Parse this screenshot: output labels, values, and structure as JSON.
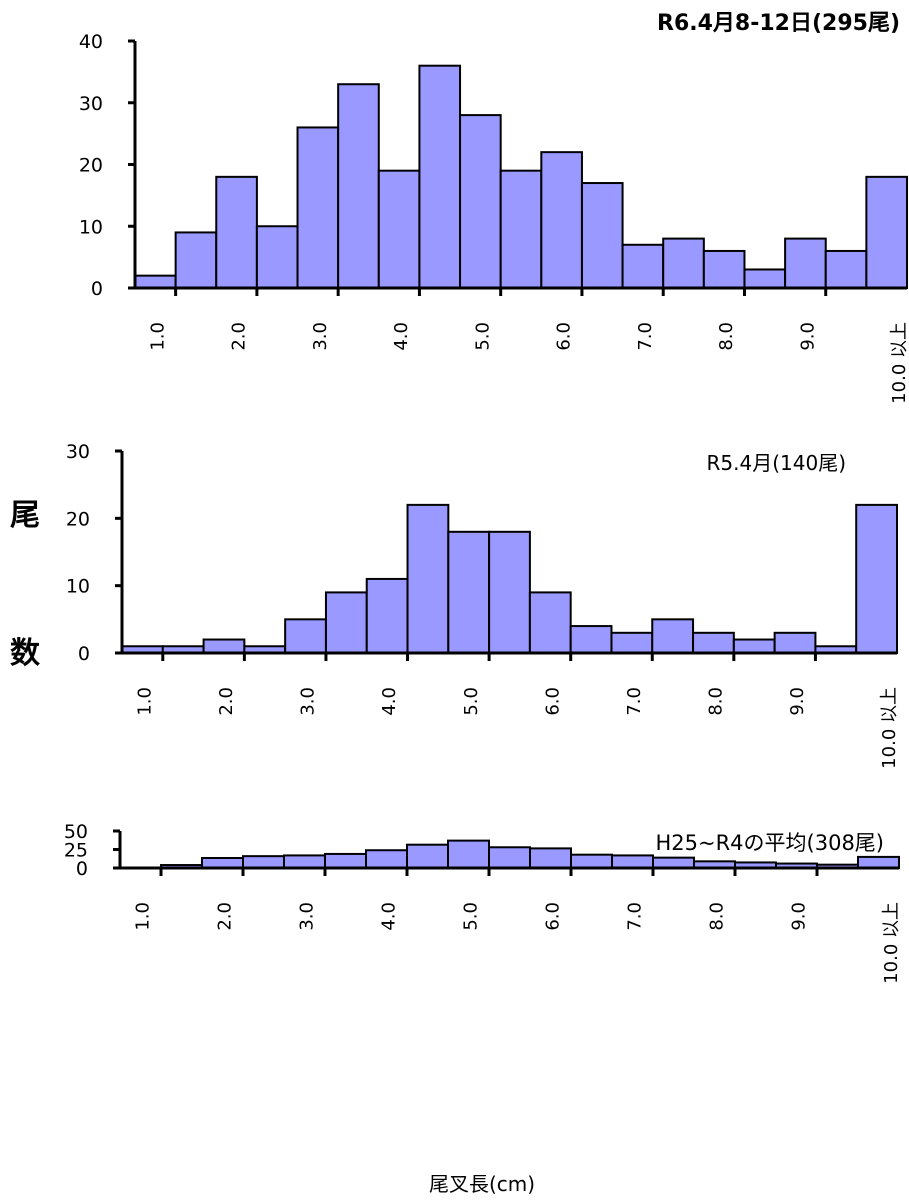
{
  "y_axis_label_top": "尾",
  "y_axis_label_bottom": "数",
  "x_axis_label": "尾叉長(cm)",
  "colors": {
    "bar_fill": "#9999ff",
    "bar_stroke": "#000000"
  },
  "chart_data": [
    {
      "type": "bar",
      "title": "R6.4月8-12日(295尾)",
      "tick_labels": [
        "1.0",
        "2.0",
        "3.0",
        "4.0",
        "5.0",
        "6.0",
        "7.0",
        "8.0",
        "9.0",
        "10.0 以上"
      ],
      "values": [
        2,
        9,
        18,
        10,
        26,
        33,
        19,
        36,
        28,
        19,
        22,
        17,
        7,
        8,
        6,
        3,
        8,
        6,
        18
      ],
      "ylim": [
        0,
        40
      ],
      "yticks": [
        0,
        10,
        20,
        30,
        40
      ],
      "grid": false
    },
    {
      "type": "bar",
      "title": "R5.4月(140尾)",
      "tick_labels": [
        "1.0",
        "2.0",
        "3.0",
        "4.0",
        "5.0",
        "6.0",
        "7.0",
        "8.0",
        "9.0",
        "10.0 以上"
      ],
      "values": [
        1,
        1,
        2,
        1,
        5,
        9,
        11,
        22,
        18,
        18,
        9,
        4,
        3,
        5,
        3,
        2,
        3,
        1,
        22
      ],
      "ylim": [
        0,
        30
      ],
      "yticks": [
        0,
        10,
        20,
        30
      ],
      "grid": false
    },
    {
      "type": "bar",
      "title": "H25~R4の平均(308尾)",
      "tick_labels": [
        "1.0",
        "2.0",
        "3.0",
        "4.0",
        "5.0",
        "6.0",
        "7.0",
        "8.0",
        "9.0",
        "10.0 以上"
      ],
      "values": [
        0.5,
        4,
        13.5,
        16,
        17,
        19,
        24,
        31.5,
        37,
        28,
        26.5,
        18,
        17,
        14,
        9,
        7.5,
        6,
        4.5,
        15
      ],
      "ylim": [
        0,
        50
      ],
      "yticks": [
        0,
        25,
        50
      ],
      "grid": false
    }
  ]
}
